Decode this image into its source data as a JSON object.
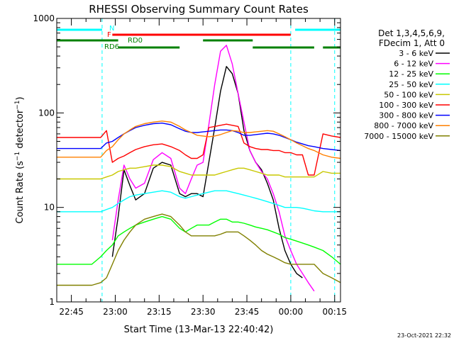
{
  "chart_data": {
    "type": "line",
    "title": "RHESSI Observing Summary Count Rates",
    "xlabel": "Start Time (13-Mar-13 22:40:42)",
    "ylabel_main": "Count Rate (s",
    "ylabel_sup1": "−1",
    "ylabel_mid": " detector",
    "ylabel_sup2": "−1",
    "ylabel_end": ")",
    "x_unit": "minutes since 22:40",
    "x_range": [
      0,
      97
    ],
    "y_scale": "log",
    "y_range": [
      1,
      1000
    ],
    "x_ticks": [
      {
        "value": 5,
        "label": "22:45"
      },
      {
        "value": 20,
        "label": "23:00"
      },
      {
        "value": 35,
        "label": "23:15"
      },
      {
        "value": 50,
        "label": "23:30"
      },
      {
        "value": 65,
        "label": "23:45"
      },
      {
        "value": 80,
        "label": "00:00"
      },
      {
        "value": 95,
        "label": "00:15"
      }
    ],
    "y_ticks": [
      {
        "value": 1,
        "label": "1"
      },
      {
        "value": 10,
        "label": "10"
      },
      {
        "value": 100,
        "label": "100"
      },
      {
        "value": 1000,
        "label": "1000"
      }
    ],
    "legend_header": [
      "Det 1,3,4,5,6,9,",
      "FDecim 1, Att 0"
    ],
    "legend_position": "right",
    "timestamp": "23-Oct-2021 22:32",
    "night_boundaries": [
      15.5,
      80,
      95
    ],
    "flag_bars": [
      {
        "label": "N",
        "color": "#00ffff",
        "segments": [
          [
            0,
            15.5
          ],
          [
            81.5,
            97
          ]
        ]
      },
      {
        "label": "F",
        "color": "#ff0000",
        "segments": [
          [
            19,
            80
          ]
        ]
      },
      {
        "label": "RD0",
        "color": "#008000",
        "segments": [
          [
            0,
            21
          ],
          [
            50,
            67
          ]
        ]
      },
      {
        "label": "RD6",
        "color": "#008000",
        "segments": [
          [
            21,
            42
          ],
          [
            67,
            88
          ],
          [
            91,
            97
          ]
        ]
      }
    ],
    "x": [
      0,
      6,
      12,
      15,
      17,
      19,
      21,
      23,
      25,
      27,
      30,
      33,
      36,
      39,
      42,
      44,
      46,
      48,
      50,
      52,
      54,
      56,
      58,
      60,
      62,
      64,
      66,
      68,
      70,
      72,
      74,
      76,
      78,
      80,
      82,
      84,
      86,
      88,
      91,
      94,
      97
    ],
    "series": [
      {
        "name": "3 - 6 keV",
        "color": "#000000",
        "values": [
          null,
          null,
          null,
          null,
          null,
          3,
          8,
          25,
          17,
          12,
          14,
          26,
          30,
          28,
          14,
          13,
          14,
          14,
          13,
          30,
          70,
          170,
          310,
          260,
          160,
          65,
          40,
          30,
          25,
          18,
          12,
          6,
          3.5,
          2.5,
          2,
          1.8,
          null,
          null,
          null,
          null,
          null
        ]
      },
      {
        "name": "6 - 12 keV",
        "color": "#ff00ff",
        "values": [
          null,
          null,
          null,
          null,
          null,
          4.5,
          12,
          28,
          20,
          16,
          18,
          32,
          38,
          33,
          16,
          14,
          20,
          28,
          30,
          75,
          200,
          450,
          520,
          330,
          160,
          80,
          40,
          30,
          24,
          20,
          14,
          9,
          5,
          3.5,
          2.5,
          2,
          1.6,
          1.3,
          null,
          null,
          null
        ]
      },
      {
        "name": "12 - 25 keV",
        "color": "#00ff00",
        "values": [
          2.5,
          2.5,
          2.5,
          3,
          3.5,
          4,
          5,
          5.5,
          6,
          6.5,
          7,
          7.5,
          8,
          7.5,
          6,
          5.5,
          6,
          6.5,
          6.5,
          6.5,
          7,
          7.5,
          7.5,
          7,
          7,
          6.8,
          6.5,
          6.2,
          6,
          5.8,
          5.5,
          5.2,
          4.8,
          4.6,
          4.4,
          4.2,
          4,
          3.8,
          3.5,
          3,
          2.5
        ]
      },
      {
        "name": "25 - 50 keV",
        "color": "#00ffff",
        "values": [
          9,
          9,
          9,
          9,
          9.5,
          10,
          11,
          12,
          13,
          13.5,
          14,
          14.5,
          15,
          14.5,
          13,
          12.5,
          13,
          13.5,
          14,
          14.5,
          15,
          15,
          15,
          14.5,
          14,
          13.5,
          13,
          12.5,
          12,
          11.5,
          11,
          10.5,
          10,
          10,
          10,
          9.8,
          9.5,
          9.2,
          9,
          9,
          9
        ]
      },
      {
        "name": "50 - 100 keV",
        "color": "#c8c800",
        "values": [
          20,
          20,
          20,
          20,
          21,
          22,
          24,
          25,
          26,
          26,
          27,
          28,
          28,
          27,
          24,
          23,
          22,
          22,
          22,
          22,
          22,
          23,
          24,
          25,
          26,
          26,
          25,
          24,
          23,
          22,
          22,
          22,
          21,
          21,
          21,
          21,
          21,
          21,
          24,
          23,
          23
        ]
      },
      {
        "name": "100 - 300 keV",
        "color": "#ff0000",
        "values": [
          55,
          55,
          55,
          55,
          65,
          30,
          33,
          35,
          38,
          41,
          44,
          46,
          47,
          44,
          40,
          36,
          33,
          33,
          36,
          70,
          72,
          74,
          76,
          74,
          72,
          48,
          44,
          42,
          41,
          41,
          40,
          40,
          38,
          38,
          36,
          36,
          22,
          22,
          60,
          57,
          55
        ]
      },
      {
        "name": "300 - 800 keV",
        "color": "#0000ff",
        "values": [
          42,
          42,
          42,
          42,
          48,
          50,
          55,
          60,
          65,
          70,
          74,
          77,
          78,
          75,
          68,
          64,
          62,
          62,
          63,
          64,
          65,
          66,
          66,
          65,
          62,
          58,
          58,
          59,
          60,
          61,
          60,
          58,
          55,
          52,
          49,
          47,
          45,
          44,
          42,
          41,
          40
        ]
      },
      {
        "name": "800 - 7000 keV",
        "color": "#ff8000",
        "values": [
          34,
          34,
          34,
          34,
          40,
          44,
          52,
          60,
          66,
          72,
          77,
          80,
          82,
          80,
          72,
          66,
          62,
          58,
          57,
          56,
          57,
          59,
          62,
          65,
          64,
          62,
          62,
          63,
          64,
          65,
          64,
          60,
          56,
          52,
          48,
          45,
          42,
          40,
          36,
          34,
          33
        ]
      },
      {
        "name": "7000 - 15000 keV",
        "color": "#808000",
        "values": [
          1.5,
          1.5,
          1.5,
          1.6,
          1.8,
          2.5,
          3.5,
          4.5,
          5.5,
          6.5,
          7.5,
          8,
          8.5,
          8,
          6.5,
          5.5,
          5,
          5,
          5,
          5,
          5,
          5.2,
          5.5,
          5.5,
          5.5,
          5,
          4.5,
          4,
          3.5,
          3.2,
          3,
          2.8,
          2.6,
          2.5,
          2.5,
          2.5,
          2.5,
          2.5,
          2,
          1.8,
          1.6
        ]
      }
    ]
  }
}
